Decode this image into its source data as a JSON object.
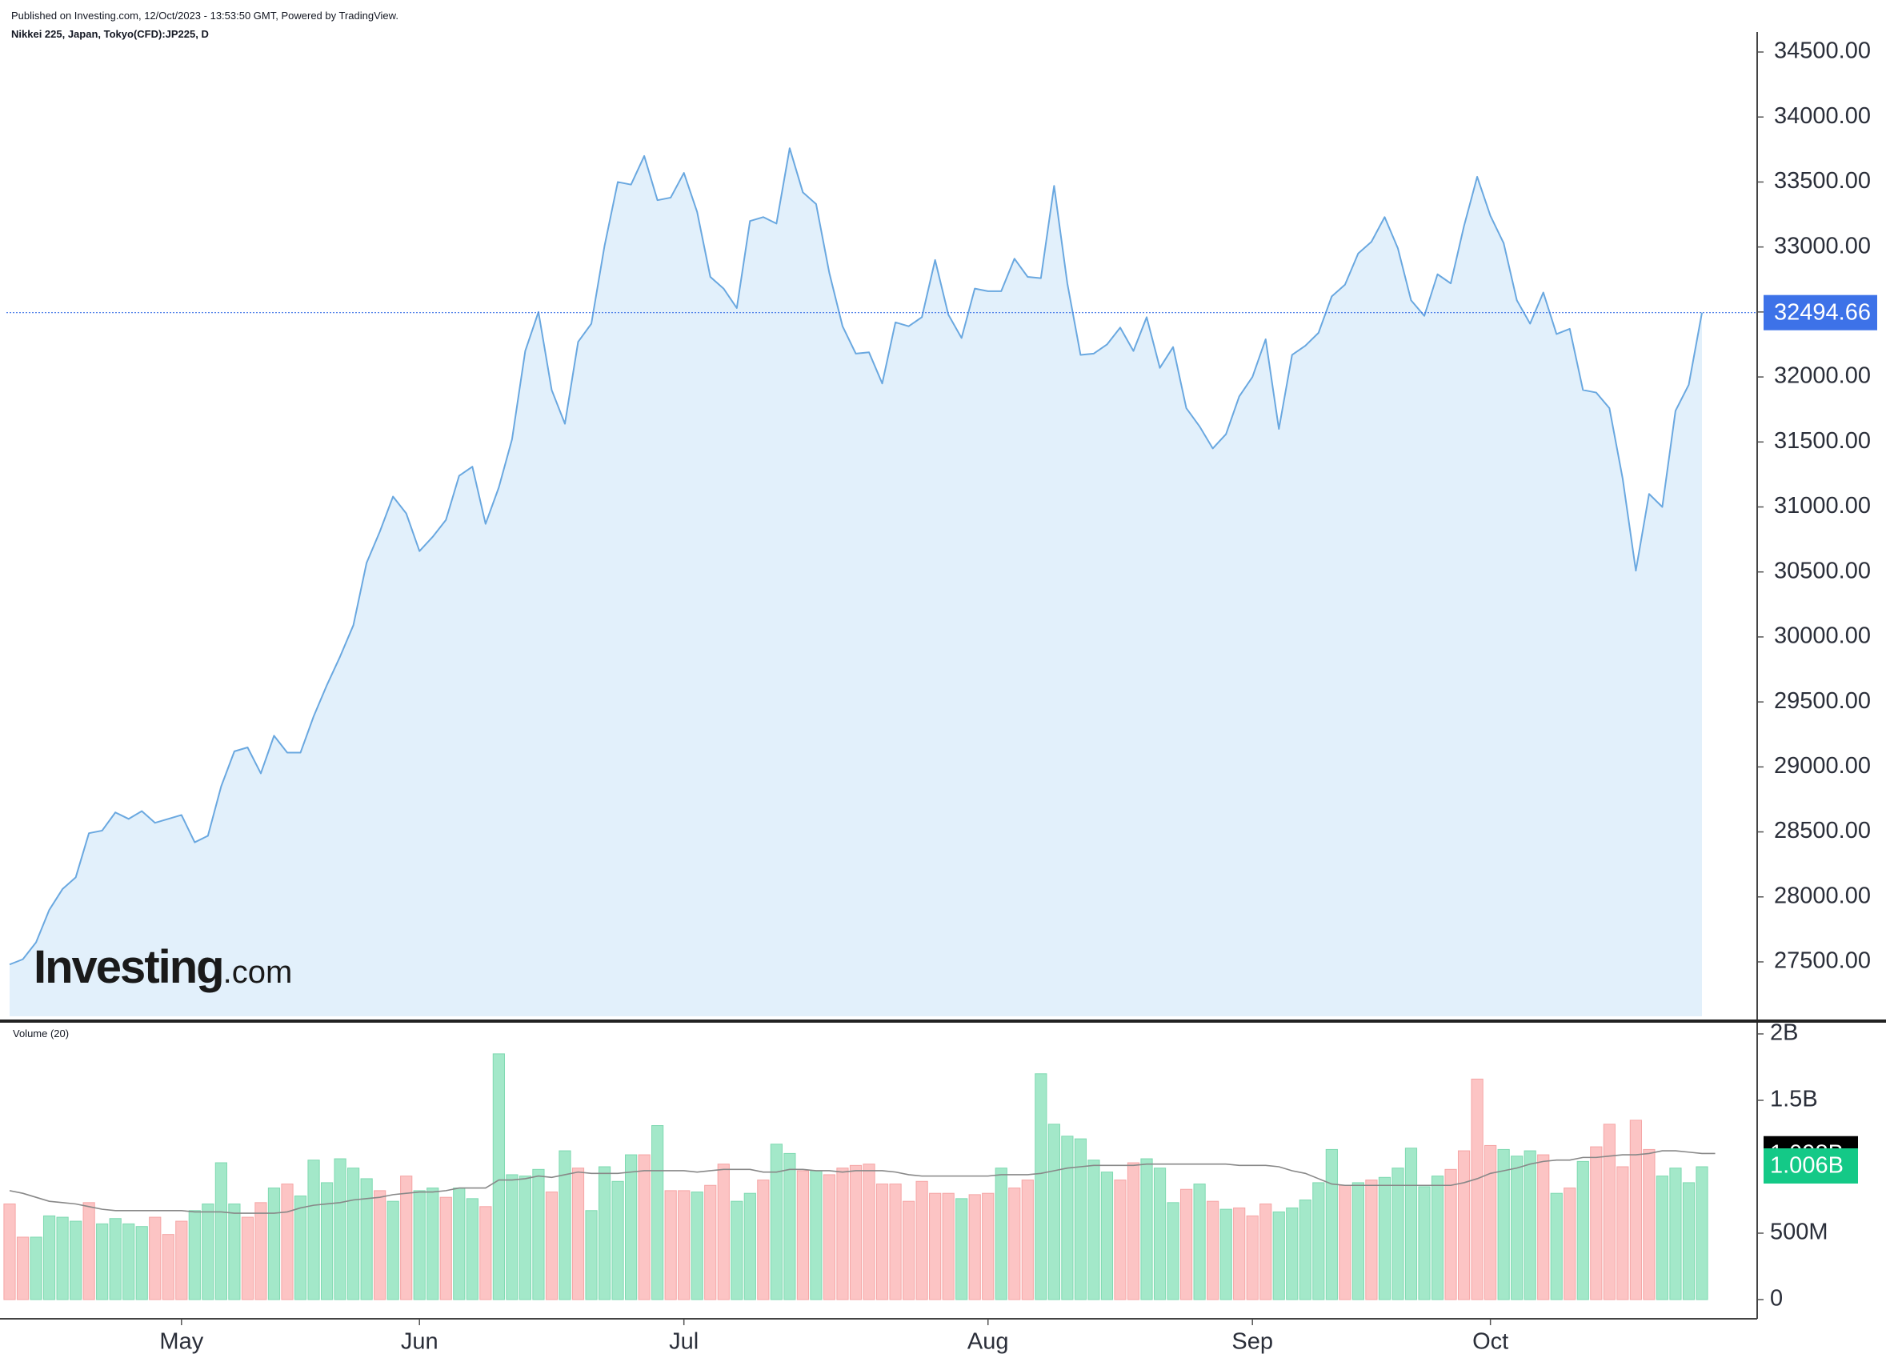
{
  "header": {
    "published": "Published on Investing.com, 12/Oct/2023 - 13:53:50 GMT, Powered by TradingView.",
    "symbol": "Nikkei 225, Japan, Tokyo(CFD):JP225, D"
  },
  "logo": {
    "brand": "Investing",
    "domain": ".com"
  },
  "colors": {
    "line": "#6aa8e0",
    "area": "#e2f0fb",
    "last_price_bg": "#3d72e8",
    "vol_up": "#a3e8c9",
    "vol_down": "#fcc4c4",
    "vol_ma": "#888888",
    "vol_ma_badge": "#000000",
    "vol_last_badge": "#14c987"
  },
  "chart_data": [
    {
      "type": "area",
      "title": "Nikkei 225, Japan, Tokyo(CFD):JP225, D",
      "x_ticks": [
        "May",
        "Jun",
        "Jul",
        "Aug",
        "Sep",
        "Oct"
      ],
      "y_ticks": [
        "27500.00",
        "28000.00",
        "28500.00",
        "29000.00",
        "29500.00",
        "30000.00",
        "30500.00",
        "31000.00",
        "31500.00",
        "32000.00",
        "32500.00",
        "33000.00",
        "33500.00",
        "34000.00",
        "34500.00"
      ],
      "ylim": [
        27100,
        34550
      ],
      "last_value": "32494.66",
      "grid": false,
      "values": [
        27480,
        27520,
        27650,
        27900,
        28060,
        28150,
        28490,
        28510,
        28650,
        28600,
        28660,
        28570,
        28600,
        28630,
        28420,
        28470,
        28850,
        29120,
        29150,
        28950,
        29240,
        29110,
        29110,
        29390,
        29630,
        29850,
        30090,
        30570,
        30810,
        31080,
        30950,
        30660,
        30770,
        30900,
        31240,
        31310,
        30870,
        31150,
        31520,
        32200,
        32500,
        31900,
        31640,
        32270,
        32410,
        33010,
        33500,
        33480,
        33700,
        33360,
        33380,
        33570,
        33270,
        32770,
        32680,
        32530,
        33200,
        33230,
        33180,
        33760,
        33420,
        33330,
        32800,
        32390,
        32180,
        32190,
        31950,
        32420,
        32390,
        32460,
        32900,
        32480,
        32300,
        32680,
        32660,
        32660,
        32910,
        32770,
        32760,
        33470,
        32720,
        32170,
        32180,
        32250,
        32380,
        32200,
        32460,
        32070,
        32230,
        31760,
        31620,
        31450,
        31560,
        31850,
        32000,
        32290,
        31600,
        32170,
        32240,
        32340,
        32620,
        32710,
        32950,
        33040,
        33230,
        32990,
        32590,
        32470,
        32790,
        32720,
        33160,
        33540,
        33240,
        33030,
        32590,
        32410,
        32650,
        32330,
        32370,
        31900,
        31880,
        31760,
        31220,
        30510,
        31100,
        31000,
        31740,
        31940,
        32495
      ]
    },
    {
      "type": "bar",
      "title": "Volume (20)",
      "y_ticks": [
        "0",
        "500M",
        "1.5B",
        "2B"
      ],
      "ylim": [
        0,
        2000000000
      ],
      "ma_value": "1.098B",
      "last_value": "1.006B",
      "series": [
        {
          "values": [
            0.72,
            0.47,
            0.47,
            0.63,
            0.62,
            0.59,
            0.73,
            0.57,
            0.61,
            0.57,
            0.55,
            0.62,
            0.49,
            0.59,
            0.67,
            0.72,
            1.03,
            0.72,
            0.62,
            0.73,
            0.84,
            0.87,
            0.78,
            1.05,
            0.88,
            1.06,
            0.99,
            0.91,
            0.82,
            0.74,
            0.93,
            0.82,
            0.84,
            0.77,
            0.84,
            0.76,
            0.7,
            1.85,
            0.94,
            0.93,
            0.98,
            0.81,
            1.12,
            0.99,
            0.67,
            1.0,
            0.89,
            1.09,
            1.09,
            1.31,
            0.82,
            0.82,
            0.81,
            0.86,
            1.02,
            0.74,
            0.8,
            0.9,
            1.17,
            1.1,
            0.97,
            0.97,
            0.94,
            0.99,
            1.01,
            1.02,
            0.87,
            0.87,
            0.74,
            0.89,
            0.8,
            0.8,
            0.76,
            0.79,
            0.8,
            0.99,
            0.84,
            0.9,
            1.7,
            1.32,
            1.23,
            1.21,
            1.05,
            0.96,
            0.9,
            1.03,
            1.06,
            0.99,
            0.73,
            0.83,
            0.87,
            0.74,
            0.68,
            0.69,
            0.63,
            0.72,
            0.66,
            0.69,
            0.75,
            0.88,
            1.13,
            0.86,
            0.88,
            0.9,
            0.92,
            0.99,
            1.14,
            0.85,
            0.93,
            0.98,
            1.12,
            1.66,
            1.16,
            1.13,
            1.08,
            1.12,
            1.09,
            0.8,
            0.84,
            1.04,
            1.15,
            1.32,
            1.0,
            1.35,
            1.13,
            0.93,
            0.99,
            0.88,
            1.0
          ]
        },
        {
          "direction": "DDUUUUDUUUUDDDUUUUDDUDUUUUUUDUDUUDUUDUUUUDUDUUUUDUDDUDDUUDUUDUDDDDDDDDDDUDDUDDUUUUUUDDUUUDUDUDDDUUUUUDUDUUUUUDDDDUUUDUDUDDDDDUUUU"
        },
        {
          "name": "Volume MA (20)",
          "values": [
            0.82,
            0.8,
            0.77,
            0.74,
            0.73,
            0.72,
            0.7,
            0.68,
            0.67,
            0.67,
            0.67,
            0.67,
            0.67,
            0.67,
            0.66,
            0.66,
            0.66,
            0.65,
            0.65,
            0.65,
            0.65,
            0.66,
            0.69,
            0.71,
            0.72,
            0.73,
            0.75,
            0.76,
            0.77,
            0.79,
            0.8,
            0.81,
            0.81,
            0.82,
            0.84,
            0.84,
            0.84,
            0.9,
            0.9,
            0.91,
            0.93,
            0.92,
            0.94,
            0.96,
            0.95,
            0.95,
            0.95,
            0.96,
            0.97,
            0.97,
            0.97,
            0.97,
            0.96,
            0.97,
            0.98,
            0.98,
            0.98,
            0.96,
            0.96,
            0.98,
            0.98,
            0.97,
            0.97,
            0.96,
            0.97,
            0.97,
            0.97,
            0.96,
            0.94,
            0.93,
            0.93,
            0.93,
            0.93,
            0.93,
            0.93,
            0.94,
            0.94,
            0.94,
            0.95,
            0.97,
            0.99,
            1.0,
            1.01,
            1.01,
            1.01,
            1.01,
            1.02,
            1.02,
            1.02,
            1.02,
            1.02,
            1.02,
            1.02,
            1.01,
            1.01,
            1.01,
            1.0,
            0.97,
            0.95,
            0.91,
            0.87,
            0.86,
            0.86,
            0.86,
            0.86,
            0.86,
            0.86,
            0.86,
            0.86,
            0.86,
            0.88,
            0.91,
            0.95,
            0.97,
            0.99,
            1.02,
            1.04,
            1.05,
            1.05,
            1.07,
            1.07,
            1.08,
            1.09,
            1.09,
            1.1,
            1.12,
            1.12,
            1.11,
            1.1,
            1.1
          ]
        }
      ]
    }
  ]
}
